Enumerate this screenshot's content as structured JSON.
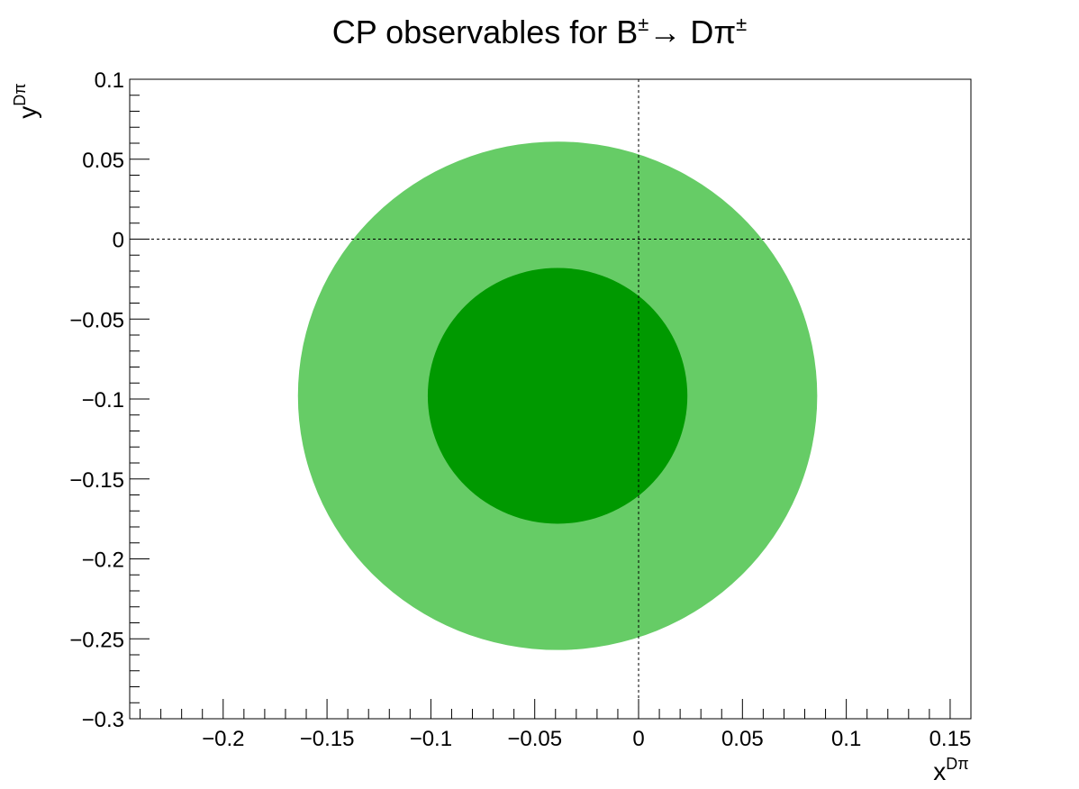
{
  "chart_data": {
    "type": "contour",
    "title": "CP observables for B±→ Dπ±",
    "title_parts": {
      "base": "CP observables for B",
      "sup1": "±",
      "arrow": "→ Dπ",
      "sup2": "±"
    },
    "xlabel": {
      "base": "x",
      "sup": "Dπ"
    },
    "ylabel": {
      "base": "y",
      "sup": "Dπ"
    },
    "xlim": [
      -0.245,
      0.16
    ],
    "ylim": [
      -0.3,
      0.1
    ],
    "x_ticks": [
      -0.2,
      -0.15,
      -0.1,
      -0.05,
      0,
      0.05,
      0.1,
      0.15
    ],
    "x_tick_labels": [
      "−0.2",
      "−0.15",
      "−0.1",
      "−0.05",
      "0",
      "0.05",
      "0.1",
      "0.15"
    ],
    "y_ticks": [
      0.1,
      0.05,
      0,
      -0.05,
      -0.1,
      -0.15,
      -0.2,
      -0.25,
      -0.3
    ],
    "y_tick_labels": [
      "0.1",
      "0.05",
      "0",
      "−0.05",
      "−0.1",
      "−0.15",
      "−0.2",
      "−0.25",
      "−0.3"
    ],
    "grid": false,
    "reference_lines": {
      "x": 0,
      "y": 0,
      "style": "dotted"
    },
    "regions": [
      {
        "level": "outer",
        "center": [
          -0.039,
          -0.098
        ],
        "radius_x": 0.125,
        "radius_y": 0.159,
        "color": "#66cc66"
      },
      {
        "level": "inner",
        "center": [
          -0.039,
          -0.098
        ],
        "radius_x": 0.0625,
        "radius_y": 0.08,
        "color": "#009900"
      }
    ]
  }
}
